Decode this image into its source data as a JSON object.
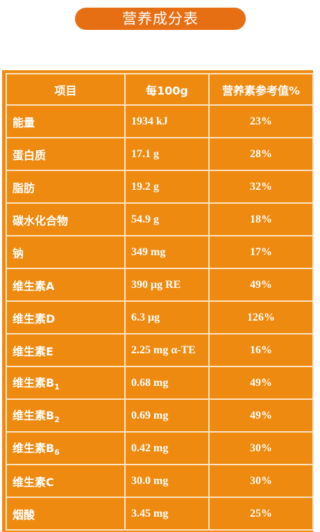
{
  "title": "营养成分表",
  "table": {
    "headers": [
      "项目",
      "每100g",
      "营养素参考值%"
    ],
    "rows": [
      {
        "name": "能量",
        "name_sub": "",
        "amount": "1934 kJ",
        "nrv": "23%"
      },
      {
        "name": "蛋白质",
        "name_sub": "",
        "amount": "17.1 g",
        "nrv": "28%"
      },
      {
        "name": "脂肪",
        "name_sub": "",
        "amount": "19.2 g",
        "nrv": "32%"
      },
      {
        "name": "碳水化合物",
        "name_sub": "",
        "amount": "54.9 g",
        "nrv": "18%"
      },
      {
        "name": "钠",
        "name_sub": "",
        "amount": "349 mg",
        "nrv": "17%"
      },
      {
        "name": "维生素A",
        "name_sub": "",
        "amount": "390 μg RE",
        "nrv": "49%"
      },
      {
        "name": "维生素D",
        "name_sub": "",
        "amount": "6.3 μg",
        "nrv": "126%"
      },
      {
        "name": "维生素E",
        "name_sub": "",
        "amount": "2.25 mg α-TE",
        "nrv": "16%"
      },
      {
        "name": "维生素B",
        "name_sub": "1",
        "amount": "0.68 mg",
        "nrv": "49%"
      },
      {
        "name": "维生素B",
        "name_sub": "2",
        "amount": "0.69 mg",
        "nrv": "49%"
      },
      {
        "name": "维生素B",
        "name_sub": "6",
        "amount": "0.42 mg",
        "nrv": "30%"
      },
      {
        "name": "维生素C",
        "name_sub": "",
        "amount": "30.0 mg",
        "nrv": "30%"
      },
      {
        "name": "烟酸",
        "name_sub": "",
        "amount": "3.45 mg",
        "nrv": "25%"
      }
    ]
  },
  "colors": {
    "title_bg": "#e66f14",
    "table_bg": "#ef8a10",
    "grid_line": "#fbe3c4",
    "text": "#ffffff"
  }
}
